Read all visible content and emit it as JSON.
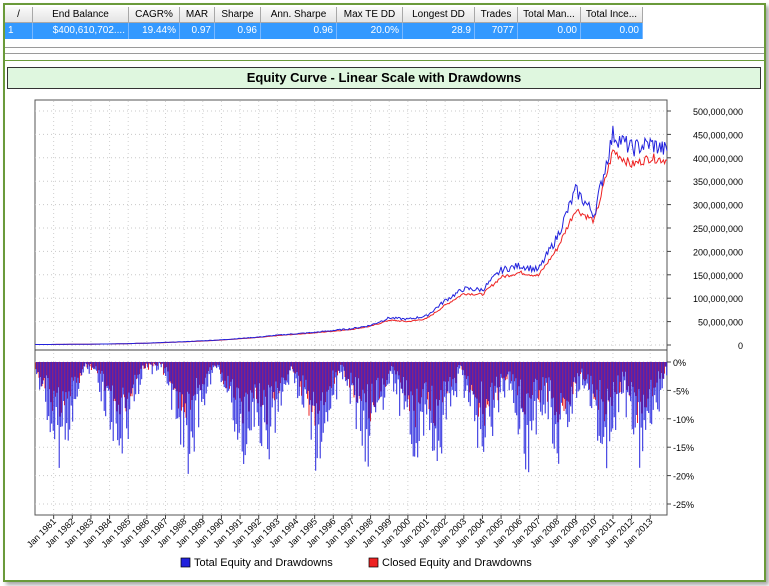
{
  "table": {
    "headers": [
      "/",
      "End Balance",
      "CAGR%",
      "MAR",
      "Sharpe",
      "Ann. Sharpe",
      "Max TE DD",
      "Longest DD",
      "Trades",
      "Total Man...",
      "Total Ince..."
    ],
    "row": [
      "1",
      "$400,610,702....",
      "19.44%",
      "0.97",
      "0.96",
      "0.96",
      "20.0%",
      "28.9",
      "7077",
      "0.00",
      "0.00"
    ]
  },
  "colors": {
    "selection": "#3399ff",
    "title_bg": "#dff7df",
    "frame": "#6a9a3a",
    "total_series": "#2222dd",
    "closed_series": "#ee2222"
  },
  "chart_data": {
    "type": "line",
    "title": "Equity Curve - Linear Scale with Drawdowns",
    "x_ticks": [
      "Jan 1981",
      "Jan 1982",
      "Jan 1983",
      "Jan 1984",
      "Jan 1985",
      "Jan 1986",
      "Jan 1987",
      "Jan 1988",
      "Jan 1989",
      "Jan 1990",
      "Jan 1991",
      "Jan 1992",
      "Jan 1993",
      "Jan 1994",
      "Jan 1995",
      "Jan 1996",
      "Jan 1997",
      "Jan 1998",
      "Jan 1999",
      "Jan 2000",
      "Jan 2001",
      "Jan 2002",
      "Jan 2003",
      "Jan 2004",
      "Jan 2005",
      "Jan 2006",
      "Jan 2007",
      "Jan 2008",
      "Jan 2009",
      "Jan 2010",
      "Jan 2011",
      "Jan 2012",
      "Jan 2013"
    ],
    "equity": {
      "y_ticks": [
        "500,000,000",
        "450,000,000",
        "400,000,000",
        "350,000,000",
        "300,000,000",
        "250,000,000",
        "200,000,000",
        "150,000,000",
        "100,000,000",
        "50,000,000",
        "0"
      ],
      "ylim": [
        0,
        500000000
      ],
      "years": [
        1980,
        1981,
        1982,
        1983,
        1984,
        1985,
        1986,
        1987,
        1988,
        1989,
        1990,
        1991,
        1992,
        1993,
        1994,
        1995,
        1996,
        1997,
        1998,
        1999,
        2000,
        2001,
        2002,
        2003,
        2004,
        2005,
        2006,
        2007,
        2008,
        2009,
        2010,
        2011,
        2012,
        2013,
        2013.9
      ],
      "series": [
        {
          "name": "Total Equity and Drawdowns",
          "values": [
            1000000,
            1200000,
            1500000,
            1800000,
            2300000,
            3000000,
            4000000,
            5500000,
            7000000,
            9000000,
            11000000,
            14000000,
            17000000,
            21000000,
            24000000,
            27000000,
            31000000,
            35000000,
            42000000,
            58000000,
            55000000,
            62000000,
            95000000,
            120000000,
            118000000,
            160000000,
            170000000,
            160000000,
            230000000,
            330000000,
            280000000,
            450000000,
            420000000,
            430000000,
            415000000
          ]
        },
        {
          "name": "Closed Equity and Drawdowns",
          "values": [
            1000000,
            1150000,
            1450000,
            1750000,
            2200000,
            2900000,
            3800000,
            5200000,
            6700000,
            8600000,
            10500000,
            13500000,
            16000000,
            20000000,
            23000000,
            26000000,
            29500000,
            33500000,
            40000000,
            53000000,
            50000000,
            56000000,
            85000000,
            110000000,
            108000000,
            145000000,
            155000000,
            148000000,
            205000000,
            290000000,
            265000000,
            415000000,
            385000000,
            400000000,
            395000000
          ]
        }
      ]
    },
    "drawdown": {
      "y_ticks": [
        "0%",
        "-5%",
        "-10%",
        "-15%",
        "-20%",
        "-25%"
      ],
      "ylim": [
        -25,
        0
      ],
      "max_drawdown_pct": -20.0
    },
    "legend": {
      "position": "bottom",
      "items": [
        {
          "label": "Total Equity and Drawdowns",
          "color": "#2222dd"
        },
        {
          "label": "Closed Equity and Drawdowns",
          "color": "#ee2222"
        }
      ]
    }
  }
}
